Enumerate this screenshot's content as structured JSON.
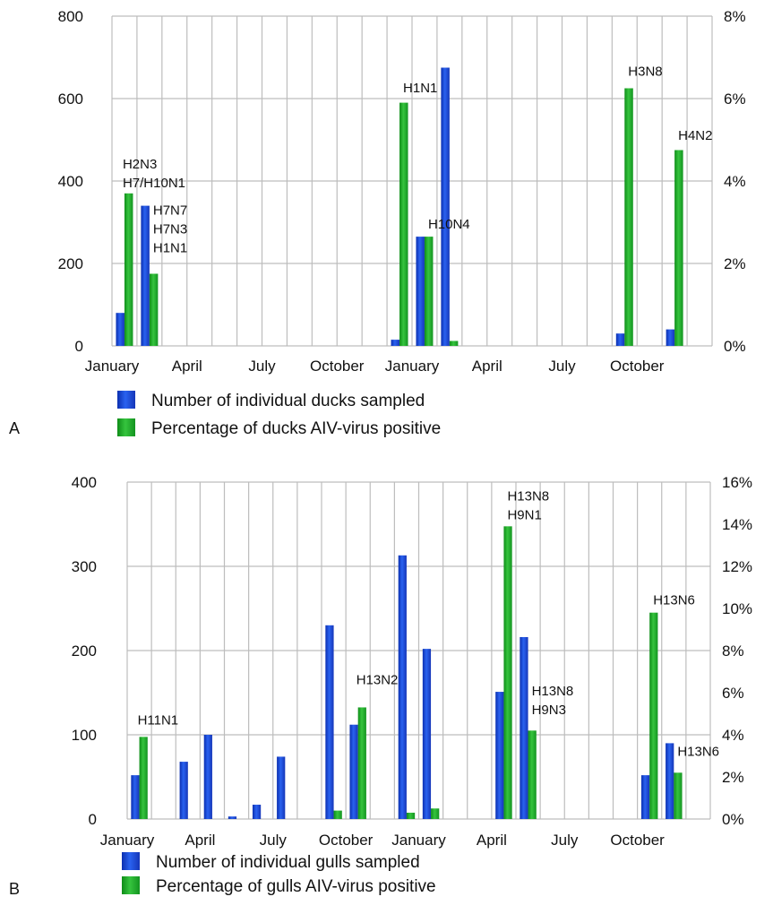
{
  "colors": {
    "blue": "#1f4fe0",
    "green": "#22b32c",
    "grid": "#bdbdbd"
  },
  "chart_data": [
    {
      "type": "bar",
      "panel_label": "A",
      "ylim_left": [
        0,
        800
      ],
      "ylim_right": [
        0,
        8
      ],
      "y_left_ticks": [
        "0",
        "200",
        "400",
        "600",
        "800"
      ],
      "y_right_ticks": [
        "0%",
        "2%",
        "4%",
        "6%",
        "8%"
      ],
      "grid": true,
      "month_slots": 24,
      "x_tick_labels": [
        {
          "slot": 0,
          "label": "January"
        },
        {
          "slot": 3,
          "label": "April"
        },
        {
          "slot": 6,
          "label": "July"
        },
        {
          "slot": 9,
          "label": "October"
        },
        {
          "slot": 12,
          "label": "January"
        },
        {
          "slot": 15,
          "label": "April"
        },
        {
          "slot": 18,
          "label": "July"
        },
        {
          "slot": 21,
          "label": "October"
        }
      ],
      "legend": [
        {
          "series": "count",
          "label": "Number of individual ducks sampled"
        },
        {
          "series": "percent",
          "label": "Percentage of ducks AIV-virus positive"
        }
      ],
      "series": [
        {
          "key": "count",
          "axis": "left",
          "color": "blue",
          "points": [
            {
              "slot": 0,
              "value": 80
            },
            {
              "slot": 1,
              "value": 340
            },
            {
              "slot": 11,
              "value": 15
            },
            {
              "slot": 12,
              "value": 265
            },
            {
              "slot": 13,
              "value": 675
            },
            {
              "slot": 20,
              "value": 30
            },
            {
              "slot": 22,
              "value": 40
            }
          ]
        },
        {
          "key": "percent",
          "axis": "right",
          "color": "green",
          "points": [
            {
              "slot": 0,
              "value": 3.7
            },
            {
              "slot": 1,
              "value": 1.75
            },
            {
              "slot": 11,
              "value": 5.9
            },
            {
              "slot": 12,
              "value": 2.65
            },
            {
              "slot": 13,
              "value": 0.12
            },
            {
              "slot": 20,
              "value": 6.25
            },
            {
              "slot": 22,
              "value": 4.75
            }
          ]
        }
      ],
      "annotations": [
        {
          "slot": 0,
          "lines": [
            "H2N3",
            "H7/H10N1"
          ],
          "y_value": 430,
          "dx": -2
        },
        {
          "slot": 1,
          "lines": [
            "H7N7",
            "H7N3",
            "H1N1"
          ],
          "y_value": 318,
          "dx": 4
        },
        {
          "slot": 11,
          "lines": [
            "H1N1"
          ],
          "y_value": 615,
          "dx": 4
        },
        {
          "slot": 12,
          "lines": [
            "H10N4"
          ],
          "y_value": 285,
          "dx": 4
        },
        {
          "slot": 20,
          "lines": [
            "H3N8"
          ],
          "y_value": 655,
          "dx": 4
        },
        {
          "slot": 22,
          "lines": [
            "H4N2"
          ],
          "y_value": 500,
          "dx": 4
        }
      ]
    },
    {
      "type": "bar",
      "panel_label": "B",
      "ylim_left": [
        0,
        400
      ],
      "ylim_right": [
        0,
        16
      ],
      "y_left_ticks": [
        "0",
        "100",
        "200",
        "300",
        "400"
      ],
      "y_right_ticks": [
        "0%",
        "2%",
        "4%",
        "6%",
        "8%",
        "10%",
        "12%",
        "14%",
        "16%"
      ],
      "grid": true,
      "month_slots": 24,
      "x_tick_labels": [
        {
          "slot": 0,
          "label": "January"
        },
        {
          "slot": 3,
          "label": "April"
        },
        {
          "slot": 6,
          "label": "July"
        },
        {
          "slot": 9,
          "label": "October"
        },
        {
          "slot": 12,
          "label": "January"
        },
        {
          "slot": 15,
          "label": "April"
        },
        {
          "slot": 18,
          "label": "July"
        },
        {
          "slot": 21,
          "label": "October"
        }
      ],
      "legend": [
        {
          "series": "count",
          "label": "Number of individual gulls sampled"
        },
        {
          "series": "percent",
          "label": "Percentage of gulls AIV-virus positive"
        }
      ],
      "series": [
        {
          "key": "count",
          "axis": "left",
          "color": "blue",
          "points": [
            {
              "slot": 0,
              "value": 52
            },
            {
              "slot": 2,
              "value": 68
            },
            {
              "slot": 3,
              "value": 100
            },
            {
              "slot": 4,
              "value": 3
            },
            {
              "slot": 5,
              "value": 17
            },
            {
              "slot": 6,
              "value": 74
            },
            {
              "slot": 8,
              "value": 230
            },
            {
              "slot": 9,
              "value": 112
            },
            {
              "slot": 11,
              "value": 313
            },
            {
              "slot": 12,
              "value": 202
            },
            {
              "slot": 15,
              "value": 151
            },
            {
              "slot": 16,
              "value": 216
            },
            {
              "slot": 21,
              "value": 52
            },
            {
              "slot": 22,
              "value": 90
            }
          ]
        },
        {
          "key": "percent",
          "axis": "right",
          "color": "green",
          "points": [
            {
              "slot": 0,
              "value": 3.9
            },
            {
              "slot": 8,
              "value": 0.4
            },
            {
              "slot": 9,
              "value": 5.3
            },
            {
              "slot": 11,
              "value": 0.3
            },
            {
              "slot": 12,
              "value": 0.5
            },
            {
              "slot": 15,
              "value": 13.9
            },
            {
              "slot": 16,
              "value": 4.2
            },
            {
              "slot": 21,
              "value": 9.8
            },
            {
              "slot": 22,
              "value": 2.2
            }
          ]
        }
      ],
      "annotations": [
        {
          "slot": 0,
          "lines": [
            "H11N1"
          ],
          "y_value": 112,
          "dx": -2
        },
        {
          "slot": 9,
          "lines": [
            "H13N2"
          ],
          "y_value": 160,
          "dx": -2
        },
        {
          "slot": 15,
          "lines": [
            "H13N8",
            "H9N1"
          ],
          "y_value": 378,
          "dx": 4
        },
        {
          "slot": 16,
          "lines": [
            "H13N8",
            "H9N3"
          ],
          "y_value": 147,
          "dx": 4
        },
        {
          "slot": 21,
          "lines": [
            "H13N6"
          ],
          "y_value": 255,
          "dx": 4
        },
        {
          "slot": 22,
          "lines": [
            "H13N6"
          ],
          "y_value": 75,
          "dx": 4
        }
      ]
    }
  ]
}
